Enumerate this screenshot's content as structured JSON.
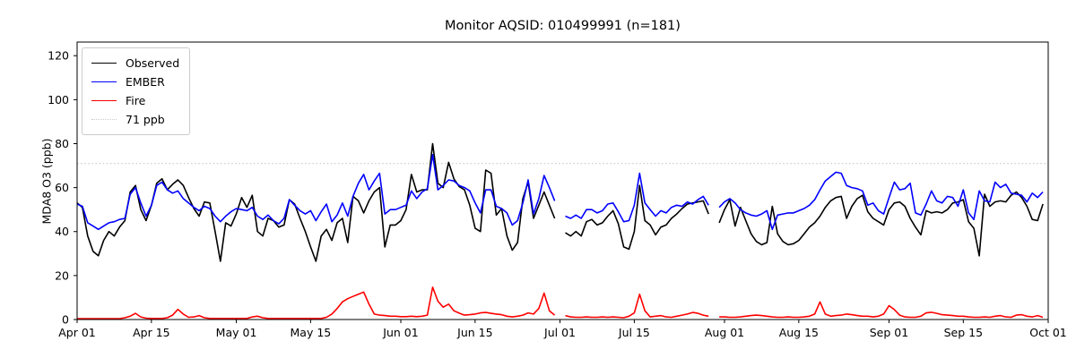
{
  "chart_data": {
    "type": "line",
    "title": "Monitor AQSID: 010499991 (n=181)",
    "ylabel": "MDA8 O3 (ppb)",
    "xlabel": "",
    "n_label": "n=181",
    "ylim": [
      0,
      126.2
    ],
    "yticks": [
      0,
      20,
      40,
      60,
      80,
      100,
      120
    ],
    "x_total_days": 183,
    "x_start": "Apr 01",
    "x_end": "Oct 01",
    "xticks": [
      {
        "label": "Apr 01",
        "day": 0
      },
      {
        "label": "Apr 15",
        "day": 14
      },
      {
        "label": "May 01",
        "day": 30
      },
      {
        "label": "May 15",
        "day": 44
      },
      {
        "label": "Jun 01",
        "day": 61
      },
      {
        "label": "Jun 15",
        "day": 75
      },
      {
        "label": "Jul 01",
        "day": 91
      },
      {
        "label": "Jul 15",
        "day": 105
      },
      {
        "label": "Aug 01",
        "day": 122
      },
      {
        "label": "Aug 15",
        "day": 136
      },
      {
        "label": "Sep 01",
        "day": 153
      },
      {
        "label": "Sep 15",
        "day": 167
      },
      {
        "label": "Oct 01",
        "day": 183
      }
    ],
    "threshold": {
      "label": "71 ppb",
      "value": 71,
      "color": "#cdcdcd",
      "style": "dotted"
    },
    "legend_position": "upper left",
    "grid": false,
    "series": [
      {
        "name": "Observed",
        "color": "#000000",
        "values": [
          53,
          51,
          38,
          31,
          29,
          36,
          40,
          38,
          42,
          45,
          58,
          61,
          50,
          45,
          52,
          62,
          64,
          59,
          61.5,
          63.5,
          61,
          55.5,
          50.5,
          47,
          53.5,
          53,
          40,
          26.5,
          44,
          42.5,
          48,
          55.5,
          51,
          56.5,
          40,
          38,
          46,
          45,
          42,
          43,
          54.5,
          52.5,
          46,
          40,
          33,
          26.5,
          38,
          41,
          36,
          44,
          46,
          35,
          56,
          54,
          48.5,
          54,
          58,
          60,
          33,
          43,
          43,
          45,
          50,
          66,
          58,
          59,
          59,
          80,
          62,
          60,
          71.5,
          64,
          60.5,
          59,
          52,
          41.5,
          40,
          68,
          66.5,
          47.5,
          50.5,
          38,
          31.5,
          35,
          55,
          62.5,
          46,
          52,
          58,
          52,
          46,
          null,
          39.5,
          38,
          40,
          38,
          44.5,
          45.5,
          43,
          44,
          47,
          49.5,
          43.5,
          33,
          32,
          40,
          61,
          45,
          43,
          38.5,
          42,
          43,
          46,
          48,
          50.5,
          52.5,
          53,
          53.5,
          54,
          48,
          null,
          44,
          50,
          54.5,
          42.5,
          51,
          45,
          39,
          35.5,
          34,
          35,
          51.5,
          39,
          35.5,
          34,
          34.5,
          36,
          39,
          42,
          44,
          47,
          51,
          54,
          55.5,
          56,
          46,
          51.5,
          55,
          56.5,
          49,
          46,
          44.5,
          43,
          50,
          53,
          53.5,
          51.5,
          46,
          42,
          38.5,
          49.5,
          48.5,
          49,
          48.5,
          50,
          53,
          53.5,
          54.5,
          44.5,
          41.5,
          29,
          57,
          51.5,
          53.5,
          54,
          53.5,
          56.5,
          58,
          55.5,
          51.5,
          45.5,
          45,
          52.5
        ]
      },
      {
        "name": "EMBER",
        "color": "#0000ff",
        "values": [
          52.5,
          51.5,
          44,
          42.5,
          41,
          42.5,
          44,
          44.5,
          45.5,
          46,
          57,
          60,
          53,
          47,
          52,
          61,
          62.5,
          59,
          57.5,
          58.5,
          55,
          53,
          51,
          49.5,
          51.5,
          50.5,
          47,
          44.5,
          47,
          49,
          50.5,
          50,
          49.5,
          51,
          47,
          45.5,
          47.5,
          45,
          43.5,
          46,
          54.5,
          52,
          49.5,
          48,
          49.5,
          45,
          49,
          52.5,
          44.5,
          47.5,
          53,
          47,
          56,
          62,
          66,
          59,
          63,
          66.5,
          48,
          50,
          50,
          51,
          52,
          58.5,
          55,
          58,
          59.5,
          75,
          59,
          61,
          63.5,
          63,
          61,
          60,
          58.5,
          53,
          48.5,
          59,
          59,
          51.5,
          50.5,
          48.5,
          43,
          45,
          53,
          63.5,
          48,
          55,
          65.5,
          60,
          54,
          null,
          47,
          46,
          47.5,
          46,
          50,
          50,
          48.5,
          49.5,
          52.5,
          53,
          49,
          44.5,
          45,
          52,
          66.5,
          53,
          50,
          47,
          49.5,
          48.5,
          51,
          52,
          51.5,
          53.5,
          52.5,
          54.5,
          56,
          52,
          null,
          51,
          53.5,
          55,
          53,
          50,
          48.5,
          47.5,
          47,
          48,
          49.5,
          41,
          47.5,
          48,
          48.5,
          48.5,
          49.5,
          50.5,
          52,
          54.5,
          59,
          63,
          65,
          67,
          66.5,
          61,
          60,
          59.5,
          58.5,
          52,
          53,
          49.5,
          48,
          55.5,
          62.5,
          59,
          59.5,
          62,
          48.5,
          47.5,
          52.5,
          58.5,
          54,
          53,
          56,
          55.5,
          51.5,
          59,
          48.5,
          45.5,
          58.5,
          54,
          53.5,
          62.5,
          60,
          61.5,
          57.5,
          57,
          56.5,
          53.5,
          57.5,
          55.5,
          58
        ]
      },
      {
        "name": "Fire",
        "color": "#ff0000",
        "values": [
          0.4,
          0.4,
          0.4,
          0.4,
          0.4,
          0.4,
          0.4,
          0.4,
          0.4,
          0.8,
          1.5,
          2.8,
          1.2,
          0.6,
          0.5,
          0.5,
          0.5,
          0.8,
          2,
          4.6,
          2.5,
          1,
          1.2,
          1.8,
          0.8,
          0.5,
          0.5,
          0.5,
          0.5,
          0.5,
          0.5,
          0.5,
          0.5,
          1.2,
          1.5,
          0.8,
          0.5,
          0.5,
          0.5,
          0.5,
          0.5,
          0.5,
          0.5,
          0.5,
          0.5,
          0.5,
          0.5,
          1,
          2.5,
          5,
          8,
          9.5,
          10.5,
          11.5,
          12.5,
          7,
          2.5,
          2,
          1.8,
          1.5,
          1.5,
          1.3,
          1.3,
          1.5,
          1.3,
          1.5,
          2,
          14.7,
          8.3,
          5.6,
          7,
          4,
          2.9,
          2,
          2.2,
          2.5,
          3,
          3.2,
          2.8,
          2.5,
          2.2,
          1.5,
          1.2,
          1.5,
          2,
          3,
          2.5,
          5,
          12,
          4,
          2,
          null,
          1.8,
          1.2,
          1,
          1,
          1.2,
          1,
          1,
          1.2,
          1,
          1.2,
          1,
          0.8,
          1.5,
          3,
          11.5,
          4,
          1.2,
          1.5,
          1.8,
          1.2,
          1,
          1.5,
          2,
          2.5,
          3.2,
          2.8,
          2,
          1.5,
          null,
          1.2,
          1.2,
          1,
          1,
          1.2,
          1.5,
          1.8,
          2,
          1.8,
          1.5,
          1.2,
          1,
          1,
          1.2,
          1,
          1,
          1.2,
          1.5,
          2.5,
          8,
          2.5,
          1.5,
          1.8,
          2,
          2.5,
          2.2,
          1.8,
          1.5,
          1.5,
          1.2,
          1.5,
          2.5,
          6.3,
          4.5,
          2,
          1.2,
          1,
          1,
          1.5,
          3,
          3.3,
          2.8,
          2.2,
          2,
          1.8,
          1.5,
          1.5,
          1.2,
          1,
          1,
          1.2,
          1,
          1.5,
          1.8,
          1.2,
          1,
          2,
          2.2,
          1.5,
          1.2,
          1.8,
          1
        ]
      }
    ]
  }
}
